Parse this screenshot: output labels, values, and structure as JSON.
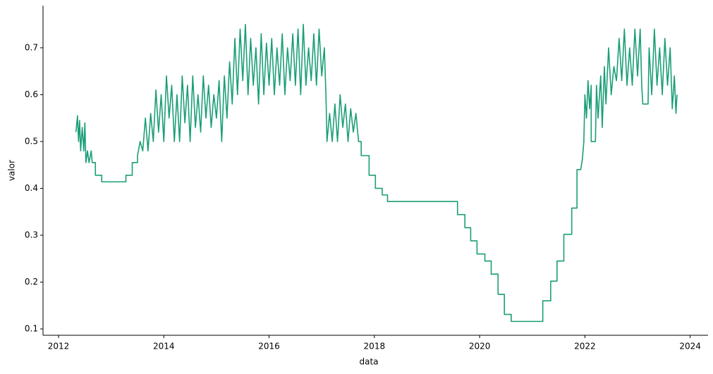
{
  "chart_data": {
    "type": "line",
    "xlabel": "data",
    "ylabel": "valor",
    "color": "#1b9e77",
    "x": [
      2012.33,
      2012.36,
      2012.38,
      2012.4,
      2012.42,
      2012.45,
      2012.48,
      2012.5,
      2012.52,
      2012.55,
      2012.58,
      2012.62,
      2012.64,
      2012.7,
      2012.7,
      2012.82,
      2012.82,
      2013.28,
      2013.28,
      2013.4,
      2013.4,
      2013.5,
      2013.5,
      2013.55,
      2013.6,
      2013.65,
      2013.7,
      2013.75,
      2013.8,
      2013.85,
      2013.9,
      2013.95,
      2014.0,
      2014.05,
      2014.1,
      2014.15,
      2014.2,
      2014.25,
      2014.3,
      2014.35,
      2014.4,
      2014.45,
      2014.5,
      2014.55,
      2014.6,
      2014.65,
      2014.7,
      2014.75,
      2014.8,
      2014.85,
      2014.9,
      2014.95,
      2015.0,
      2015.05,
      2015.1,
      2015.15,
      2015.2,
      2015.25,
      2015.3,
      2015.35,
      2015.4,
      2015.45,
      2015.5,
      2015.55,
      2015.6,
      2015.65,
      2015.7,
      2015.75,
      2015.8,
      2015.85,
      2015.9,
      2015.95,
      2016.0,
      2016.05,
      2016.1,
      2016.15,
      2016.2,
      2016.25,
      2016.3,
      2016.35,
      2016.4,
      2016.45,
      2016.5,
      2016.55,
      2016.6,
      2016.65,
      2016.7,
      2016.75,
      2016.8,
      2016.85,
      2016.9,
      2016.95,
      2017.0,
      2017.05,
      2017.08,
      2017.1,
      2017.15,
      2017.2,
      2017.25,
      2017.3,
      2017.35,
      2017.4,
      2017.45,
      2017.5,
      2017.55,
      2017.6,
      2017.65,
      2017.7,
      2017.75,
      2017.75,
      2017.9,
      2017.9,
      2018.02,
      2018.02,
      2018.15,
      2018.15,
      2018.25,
      2018.25,
      2019.58,
      2019.58,
      2019.72,
      2019.72,
      2019.83,
      2019.83,
      2019.95,
      2019.95,
      2020.1,
      2020.1,
      2020.22,
      2020.22,
      2020.35,
      2020.35,
      2020.47,
      2020.47,
      2020.6,
      2020.6,
      2021.2,
      2021.2,
      2021.35,
      2021.35,
      2021.47,
      2021.47,
      2021.6,
      2021.6,
      2021.75,
      2021.75,
      2021.85,
      2021.85,
      2021.92,
      2021.95,
      2021.98,
      2022.0,
      2022.03,
      2022.06,
      2022.09,
      2022.12,
      2022.12,
      2022.2,
      2022.22,
      2022.25,
      2022.3,
      2022.33,
      2022.37,
      2022.4,
      2022.45,
      2022.5,
      2022.55,
      2022.6,
      2022.65,
      2022.7,
      2022.75,
      2022.8,
      2022.85,
      2022.9,
      2022.95,
      2023.0,
      2023.05,
      2023.08,
      2023.1,
      2023.2,
      2023.22,
      2023.27,
      2023.32,
      2023.37,
      2023.42,
      2023.47,
      2023.52,
      2023.57,
      2023.62,
      2023.66,
      2023.7,
      2023.73,
      2023.75
    ],
    "values": [
      0.52,
      0.555,
      0.5,
      0.545,
      0.48,
      0.53,
      0.48,
      0.54,
      0.455,
      0.48,
      0.455,
      0.48,
      0.455,
      0.455,
      0.428,
      0.428,
      0.414,
      0.414,
      0.428,
      0.428,
      0.455,
      0.455,
      0.47,
      0.5,
      0.48,
      0.55,
      0.48,
      0.56,
      0.5,
      0.61,
      0.52,
      0.6,
      0.5,
      0.64,
      0.55,
      0.62,
      0.5,
      0.6,
      0.5,
      0.64,
      0.54,
      0.62,
      0.5,
      0.64,
      0.53,
      0.6,
      0.52,
      0.64,
      0.55,
      0.62,
      0.53,
      0.6,
      0.55,
      0.63,
      0.5,
      0.64,
      0.55,
      0.67,
      0.58,
      0.72,
      0.6,
      0.74,
      0.63,
      0.75,
      0.6,
      0.72,
      0.62,
      0.7,
      0.58,
      0.73,
      0.6,
      0.71,
      0.62,
      0.72,
      0.6,
      0.7,
      0.62,
      0.73,
      0.6,
      0.7,
      0.63,
      0.73,
      0.62,
      0.74,
      0.6,
      0.75,
      0.62,
      0.7,
      0.63,
      0.73,
      0.62,
      0.74,
      0.64,
      0.7,
      0.6,
      0.5,
      0.56,
      0.5,
      0.58,
      0.5,
      0.6,
      0.53,
      0.58,
      0.5,
      0.57,
      0.52,
      0.56,
      0.5,
      0.5,
      0.47,
      0.47,
      0.428,
      0.428,
      0.4,
      0.4,
      0.386,
      0.386,
      0.372,
      0.372,
      0.344,
      0.344,
      0.316,
      0.316,
      0.288,
      0.288,
      0.26,
      0.26,
      0.245,
      0.245,
      0.217,
      0.217,
      0.174,
      0.174,
      0.131,
      0.131,
      0.116,
      0.116,
      0.16,
      0.16,
      0.202,
      0.202,
      0.245,
      0.245,
      0.302,
      0.302,
      0.358,
      0.358,
      0.44,
      0.44,
      0.46,
      0.5,
      0.6,
      0.55,
      0.63,
      0.57,
      0.62,
      0.5,
      0.5,
      0.62,
      0.55,
      0.64,
      0.53,
      0.66,
      0.58,
      0.7,
      0.6,
      0.66,
      0.63,
      0.72,
      0.63,
      0.74,
      0.62,
      0.7,
      0.62,
      0.74,
      0.64,
      0.74,
      0.62,
      0.58,
      0.58,
      0.7,
      0.6,
      0.74,
      0.62,
      0.7,
      0.6,
      0.72,
      0.62,
      0.7,
      0.57,
      0.64,
      0.56,
      0.6
    ],
    "xlim": [
      2011.705,
      2024.34
    ],
    "ylim": [
      0.0865,
      0.79
    ],
    "xticks": [
      2012,
      2014,
      2016,
      2018,
      2020,
      2022,
      2024
    ],
    "yticks": [
      0.1,
      0.2,
      0.3,
      0.4,
      0.5,
      0.6,
      0.7
    ]
  }
}
